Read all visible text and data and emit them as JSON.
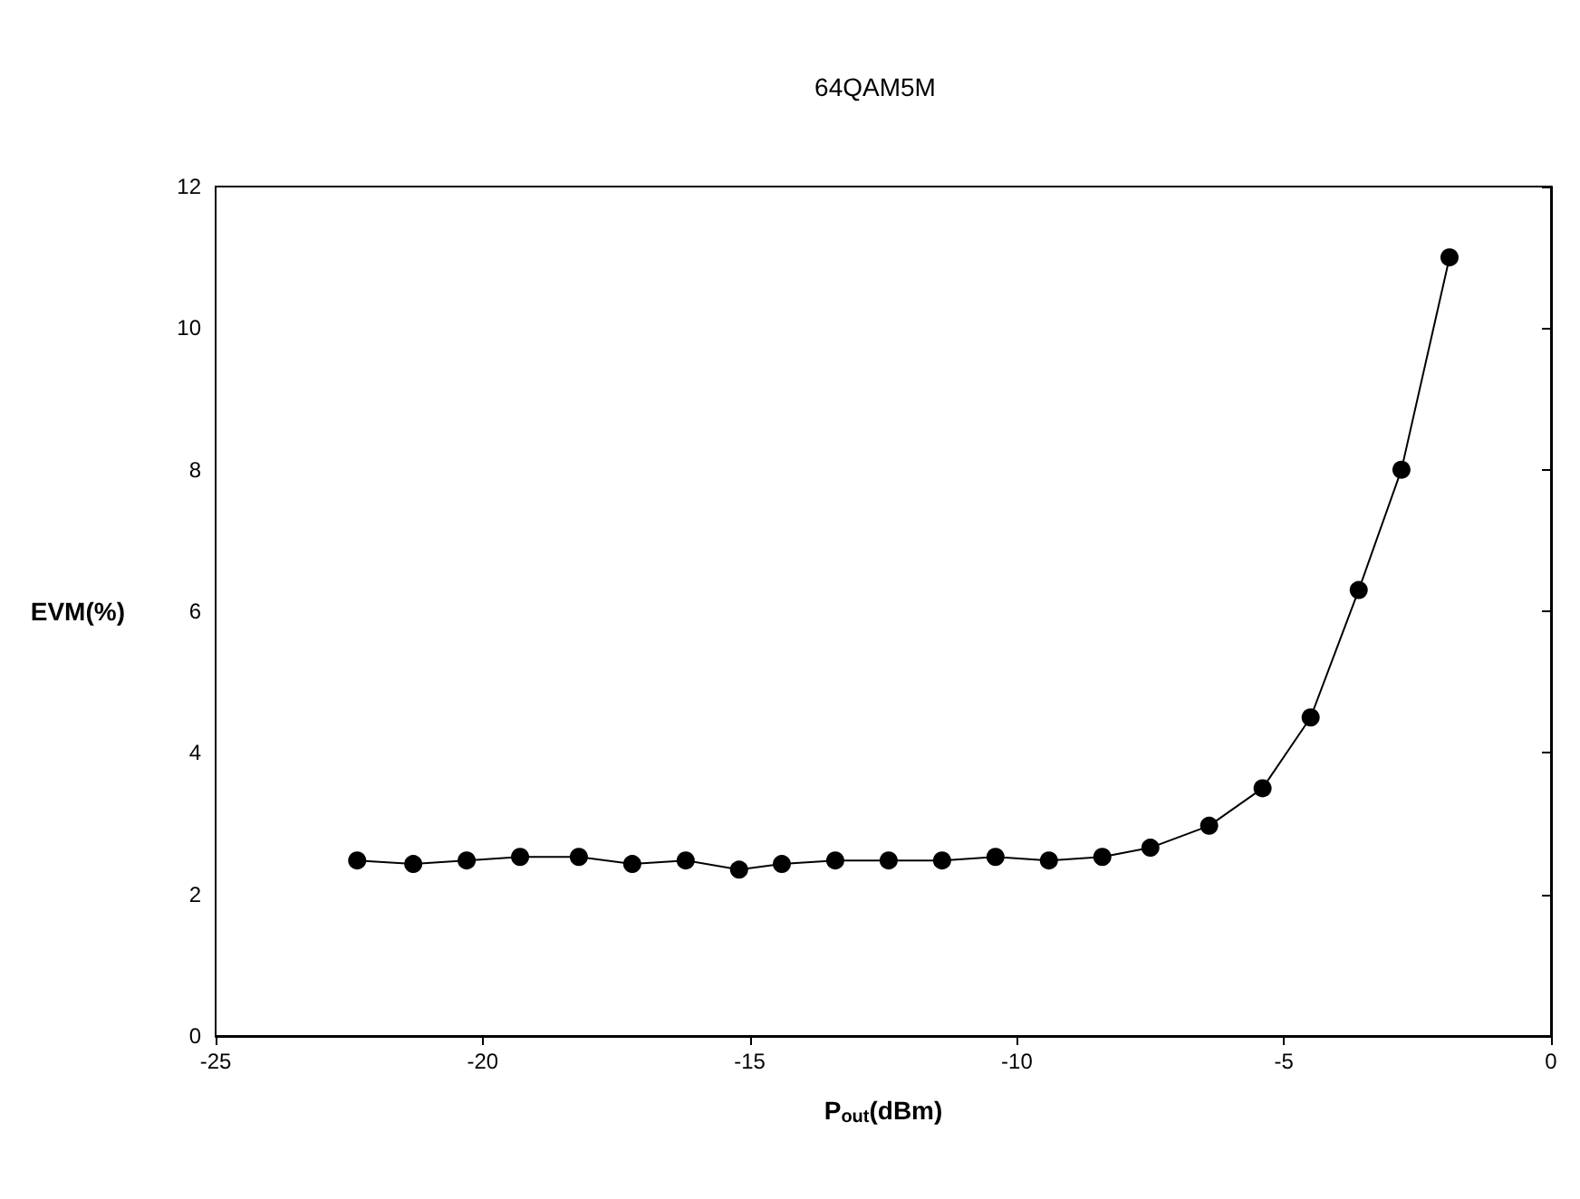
{
  "chart_data": {
    "type": "line",
    "title": "64QAM5M",
    "xlabel": "P$_{out}$(dBm)",
    "ylabel": "EVM(%)",
    "x": [
      -22.35,
      -21.3,
      -20.3,
      -19.3,
      -18.2,
      -17.2,
      -16.2,
      -15.2,
      -14.4,
      -13.4,
      -12.4,
      -11.4,
      -10.4,
      -9.4,
      -8.4,
      -7.5,
      -6.4,
      -5.4,
      -4.5,
      -3.6,
      -2.8,
      -1.9
    ],
    "series": [
      {
        "color": "#000000",
        "values": [
          2.48,
          2.43,
          2.48,
          2.53,
          2.53,
          2.43,
          2.48,
          2.35,
          2.43,
          2.48,
          2.48,
          2.48,
          2.53,
          2.48,
          2.53,
          2.66,
          2.97,
          3.5,
          4.5,
          6.3,
          8.0,
          11.0
        ]
      }
    ],
    "xlim": [
      -25,
      0
    ],
    "xticks": [
      -25,
      -20,
      -15,
      -10,
      -5,
      0
    ],
    "ylim": [
      0,
      12
    ],
    "yticks": [
      0,
      2,
      4,
      6,
      8,
      10,
      12
    ],
    "grid": false,
    "marker": "circle",
    "line_style": "solid"
  }
}
